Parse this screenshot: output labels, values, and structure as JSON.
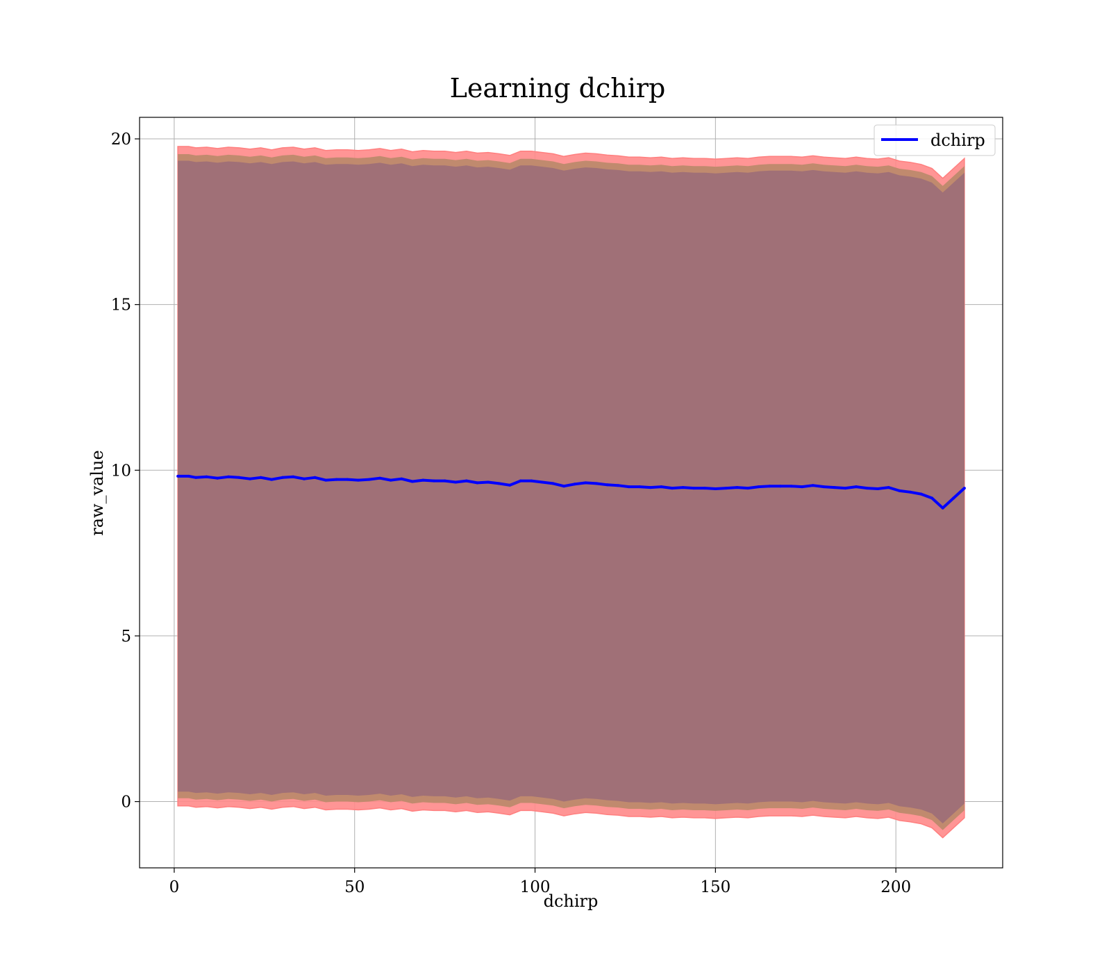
{
  "chart_data": {
    "type": "line",
    "title": "Learning dchirp",
    "xlabel": "dchirp",
    "ylabel": "raw_value",
    "xlim": [
      -9.6,
      229.6
    ],
    "ylim": [
      -2.0,
      20.65
    ],
    "xticks": [
      0,
      50,
      100,
      150,
      200
    ],
    "yticks": [
      0,
      5,
      10,
      15,
      20
    ],
    "grid": true,
    "legend": {
      "location": "upper right",
      "entries": [
        "dchirp"
      ]
    },
    "colors": {
      "line": "#0000ff",
      "outer_band": "#ff8a8a",
      "middle_band": "#c08a6e",
      "inner_band": "#a07077",
      "grid": "#b0b0b0"
    },
    "series": [
      {
        "name": "dchirp",
        "x": [
          1,
          4,
          6,
          9,
          12,
          15,
          18,
          21,
          24,
          27,
          30,
          33,
          36,
          39,
          42,
          45,
          48,
          51,
          54,
          57,
          60,
          63,
          66,
          69,
          72,
          75,
          78,
          81,
          84,
          87,
          90,
          93,
          96,
          99,
          102,
          105,
          108,
          111,
          114,
          117,
          120,
          123,
          126,
          129,
          132,
          135,
          138,
          141,
          144,
          147,
          150,
          153,
          156,
          159,
          162,
          165,
          168,
          171,
          174,
          177,
          180,
          183,
          186,
          189,
          192,
          195,
          198,
          201,
          204,
          207,
          210,
          213,
          216,
          219
        ],
        "values": [
          9.82,
          9.82,
          9.78,
          9.8,
          9.76,
          9.8,
          9.78,
          9.74,
          9.78,
          9.72,
          9.78,
          9.8,
          9.74,
          9.78,
          9.7,
          9.72,
          9.72,
          9.7,
          9.72,
          9.76,
          9.7,
          9.74,
          9.66,
          9.7,
          9.68,
          9.68,
          9.64,
          9.68,
          9.62,
          9.64,
          9.6,
          9.55,
          9.68,
          9.68,
          9.64,
          9.6,
          9.52,
          9.58,
          9.62,
          9.6,
          9.56,
          9.54,
          9.5,
          9.5,
          9.48,
          9.5,
          9.46,
          9.48,
          9.46,
          9.46,
          9.44,
          9.46,
          9.48,
          9.46,
          9.5,
          9.52,
          9.52,
          9.52,
          9.5,
          9.54,
          9.5,
          9.48,
          9.46,
          9.5,
          9.46,
          9.44,
          9.48,
          9.38,
          9.34,
          9.28,
          9.16,
          8.86,
          9.16,
          9.46
        ]
      }
    ],
    "bands": {
      "outer_half_width": 9.95,
      "middle_half_width": 9.72,
      "inner_half_width": 9.52
    }
  }
}
